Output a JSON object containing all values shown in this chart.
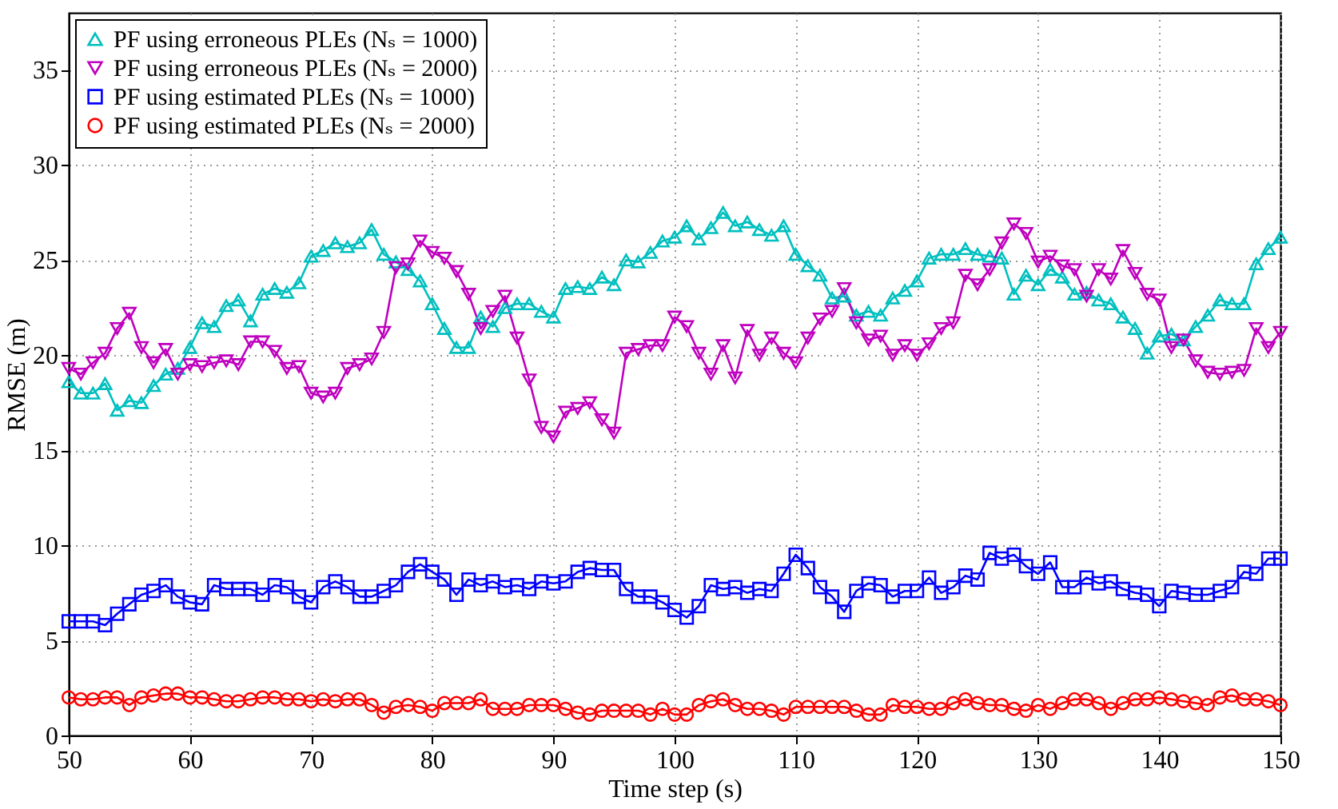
{
  "chart_data": {
    "type": "line",
    "xlabel": "Time step (s)",
    "ylabel": "RMSE (m)",
    "x": [
      50,
      51,
      52,
      53,
      54,
      55,
      56,
      57,
      58,
      59,
      60,
      61,
      62,
      63,
      64,
      65,
      66,
      67,
      68,
      69,
      70,
      71,
      72,
      73,
      74,
      75,
      76,
      77,
      78,
      79,
      80,
      81,
      82,
      83,
      84,
      85,
      86,
      87,
      88,
      89,
      90,
      91,
      92,
      93,
      94,
      95,
      96,
      97,
      98,
      99,
      100,
      101,
      102,
      103,
      104,
      105,
      106,
      107,
      108,
      109,
      110,
      111,
      112,
      113,
      114,
      115,
      116,
      117,
      118,
      119,
      120,
      121,
      122,
      123,
      124,
      125,
      126,
      127,
      128,
      129,
      130,
      131,
      132,
      133,
      134,
      135,
      136,
      137,
      138,
      139,
      140,
      141,
      142,
      143,
      144,
      145,
      146,
      147,
      148,
      149,
      150
    ],
    "series": [
      {
        "name": "PF using erroneous PLEs (Nₛ = 1000)",
        "color": "#00bfbf",
        "marker": "triangle",
        "values": [
          18.6,
          18.0,
          18.0,
          18.5,
          17.1,
          17.6,
          17.5,
          18.4,
          19.0,
          19.3,
          20.4,
          21.7,
          21.5,
          22.6,
          22.9,
          21.8,
          23.2,
          23.5,
          23.3,
          23.8,
          25.2,
          25.5,
          25.9,
          25.7,
          25.9,
          26.6,
          25.3,
          24.9,
          24.5,
          23.9,
          22.7,
          21.4,
          20.4,
          20.4,
          22.0,
          21.5,
          22.5,
          22.7,
          22.7,
          22.3,
          22.0,
          23.5,
          23.6,
          23.5,
          24.1,
          23.7,
          25.0,
          24.9,
          25.4,
          26.0,
          26.2,
          26.8,
          26.1,
          26.7,
          27.5,
          26.8,
          27.0,
          26.6,
          26.3,
          26.8,
          25.3,
          24.7,
          24.2,
          23.0,
          23.1,
          22.1,
          22.3,
          22.1,
          23.0,
          23.4,
          23.9,
          25.1,
          25.3,
          25.3,
          25.6,
          25.3,
          25.2,
          25.1,
          23.2,
          24.2,
          23.7,
          24.5,
          24.1,
          23.2,
          23.3,
          22.9,
          22.7,
          22.0,
          21.4,
          20.1,
          21.0,
          21.1,
          20.8,
          21.5,
          22.1,
          22.9,
          22.7,
          22.7,
          24.8,
          25.6,
          26.2
        ]
      },
      {
        "name": "PF using erroneous PLEs (Nₛ = 2000)",
        "color": "#bf00bf",
        "marker": "triangle-down",
        "values": [
          19.3,
          19.0,
          19.6,
          20.1,
          21.4,
          22.2,
          20.4,
          19.6,
          20.3,
          19.0,
          19.5,
          19.4,
          19.6,
          19.7,
          19.5,
          20.7,
          20.7,
          20.2,
          19.3,
          19.4,
          18.0,
          17.8,
          18.0,
          19.3,
          19.5,
          19.8,
          21.2,
          24.6,
          24.8,
          26.0,
          25.4,
          25.1,
          24.4,
          23.2,
          21.4,
          22.3,
          23.1,
          20.9,
          18.7,
          16.2,
          15.7,
          17.0,
          17.2,
          17.5,
          16.6,
          15.9,
          20.1,
          20.3,
          20.5,
          20.5,
          22.0,
          21.5,
          20.1,
          19.0,
          20.5,
          18.8,
          21.3,
          20.0,
          20.9,
          20.1,
          19.6,
          20.9,
          21.9,
          22.3,
          23.5,
          21.7,
          20.8,
          21.0,
          20.0,
          20.5,
          20.0,
          20.6,
          21.4,
          21.7,
          24.2,
          23.7,
          24.5,
          25.9,
          26.9,
          26.4,
          24.9,
          25.2,
          24.7,
          24.5,
          23.1,
          24.5,
          24.0,
          25.5,
          24.3,
          23.2,
          22.9,
          20.4,
          20.8,
          19.7,
          19.1,
          19.0,
          19.1,
          19.2,
          21.4,
          20.4,
          21.2
        ]
      },
      {
        "name": "PF using estimated PLEs (Nₛ = 1000)",
        "color": "#0000ff",
        "marker": "square",
        "values": [
          6.0,
          6.0,
          6.0,
          5.8,
          6.4,
          6.9,
          7.4,
          7.6,
          7.9,
          7.3,
          7.0,
          6.9,
          7.9,
          7.7,
          7.7,
          7.7,
          7.4,
          7.9,
          7.8,
          7.3,
          7.0,
          7.8,
          8.1,
          7.8,
          7.3,
          7.3,
          7.6,
          7.9,
          8.6,
          9.0,
          8.6,
          8.2,
          7.4,
          8.2,
          7.9,
          8.1,
          7.8,
          7.9,
          7.7,
          8.1,
          8.0,
          8.1,
          8.6,
          8.8,
          8.7,
          8.7,
          7.7,
          7.3,
          7.3,
          7.0,
          6.6,
          6.2,
          6.8,
          7.9,
          7.7,
          7.8,
          7.5,
          7.7,
          7.6,
          8.5,
          9.5,
          8.8,
          7.8,
          7.3,
          6.5,
          7.6,
          8.0,
          7.9,
          7.3,
          7.6,
          7.6,
          8.3,
          7.5,
          7.8,
          8.4,
          8.2,
          9.6,
          9.3,
          9.5,
          8.9,
          8.5,
          9.1,
          7.8,
          7.8,
          8.3,
          8.0,
          8.1,
          7.7,
          7.5,
          7.4,
          6.8,
          7.6,
          7.5,
          7.4,
          7.4,
          7.6,
          7.8,
          8.6,
          8.5,
          9.3,
          9.3
        ]
      },
      {
        "name": "PF using estimated PLEs (Nₛ = 2000)",
        "color": "#ff0000",
        "marker": "circle",
        "values": [
          2.0,
          1.9,
          1.9,
          2.0,
          2.0,
          1.6,
          2.0,
          2.1,
          2.2,
          2.2,
          2.0,
          2.0,
          1.9,
          1.8,
          1.8,
          1.9,
          2.0,
          2.0,
          1.9,
          1.9,
          1.8,
          1.9,
          1.8,
          1.9,
          1.9,
          1.6,
          1.2,
          1.5,
          1.6,
          1.5,
          1.3,
          1.7,
          1.7,
          1.7,
          1.9,
          1.4,
          1.4,
          1.4,
          1.6,
          1.6,
          1.6,
          1.4,
          1.2,
          1.1,
          1.3,
          1.3,
          1.3,
          1.3,
          1.1,
          1.4,
          1.1,
          1.1,
          1.6,
          1.8,
          1.9,
          1.6,
          1.4,
          1.4,
          1.3,
          1.1,
          1.5,
          1.5,
          1.5,
          1.5,
          1.5,
          1.3,
          1.1,
          1.1,
          1.6,
          1.5,
          1.5,
          1.4,
          1.4,
          1.7,
          1.9,
          1.7,
          1.6,
          1.6,
          1.4,
          1.3,
          1.6,
          1.4,
          1.7,
          1.9,
          1.9,
          1.7,
          1.4,
          1.7,
          1.9,
          1.9,
          2.0,
          1.9,
          1.8,
          1.7,
          1.6,
          2.0,
          2.1,
          1.9,
          1.9,
          1.8,
          1.6
        ]
      }
    ],
    "xlim": [
      50,
      150
    ],
    "xticks": [
      50,
      60,
      70,
      80,
      90,
      100,
      110,
      120,
      130,
      140,
      150
    ],
    "ylim": [
      0,
      38
    ],
    "yticks": [
      0,
      5,
      10,
      15,
      20,
      25,
      30,
      35
    ],
    "grid": true,
    "legend": "top left",
    "line_style": "solid"
  }
}
